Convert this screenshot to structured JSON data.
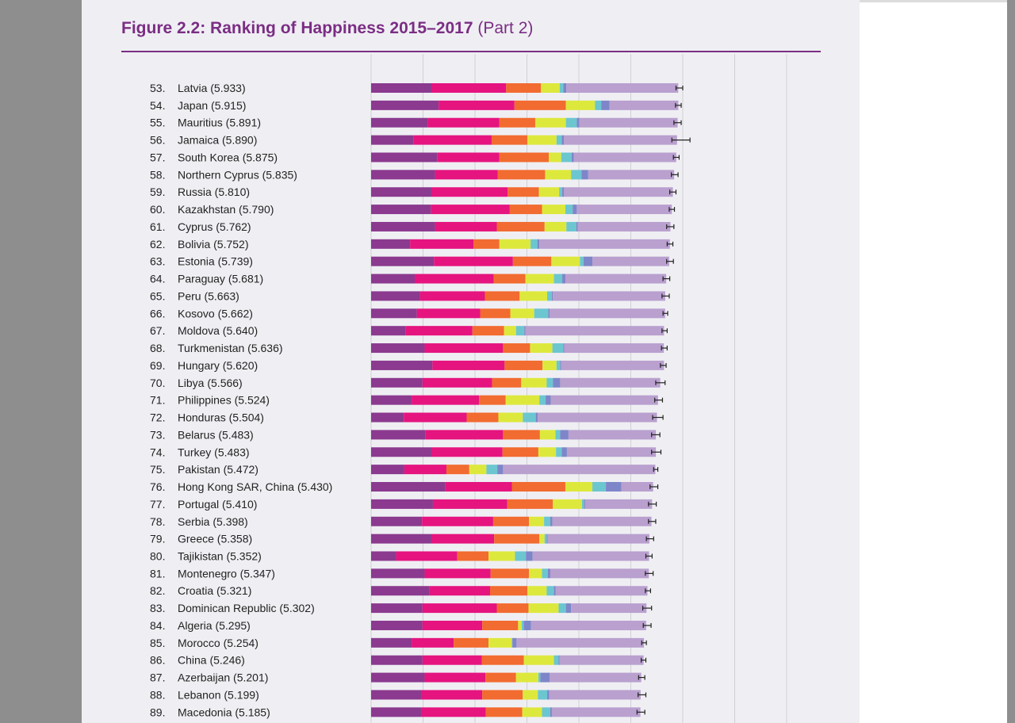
{
  "figure": {
    "title": "Figure 2.2: Ranking of Happiness 2015–2017",
    "part": "(Part 2)"
  },
  "colors": {
    "title": "#7b2d84",
    "segments": [
      "#8b3a8f",
      "#e5147f",
      "#f26b30",
      "#dde83c",
      "#6cc6d0",
      "#7e86c9",
      "#b9a0cf"
    ],
    "gridline": "#cfcfd6",
    "errorbar": "#222222"
  },
  "chart_data": {
    "type": "bar",
    "orientation": "horizontal",
    "stacked": true,
    "grid": true,
    "xlim": [
      0,
      8
    ],
    "categories": [
      "53.  Latvia (5.933)",
      "54.  Japan (5.915)",
      "55.  Mauritius (5.891)",
      "56.  Jamaica (5.890)",
      "57.  South Korea (5.875)",
      "58.  Northern Cyprus (5.835)",
      "59.  Russia (5.810)",
      "60.  Kazakhstan (5.790)",
      "61.  Cyprus (5.762)",
      "62.  Bolivia (5.752)",
      "63.  Estonia (5.739)",
      "64.  Paraguay (5.681)",
      "65.  Peru (5.663)",
      "66.  Kosovo (5.662)",
      "67.  Moldova (5.640)",
      "68.  Turkmenistan (5.636)",
      "69.  Hungary (5.620)",
      "70.  Libya (5.566)",
      "71.  Philippines (5.524)",
      "72.  Honduras (5.504)",
      "73.  Belarus (5.483)",
      "74.  Turkey (5.483)",
      "75.  Pakistan (5.472)",
      "76.  Hong Kong SAR, China (5.430)",
      "77.  Portugal (5.410)",
      "78.  Serbia (5.398)",
      "79.  Greece (5.358)",
      "80.  Tajikistan (5.352)",
      "81.  Montenegro (5.347)",
      "82.  Croatia (5.321)",
      "83.  Dominican Republic (5.302)",
      "84.  Algeria (5.295)",
      "85.  Morocco (5.254)",
      "86.  China (5.246)",
      "87.  Azerbaijan (5.201)",
      "88.  Lebanon (5.199)",
      "89.  Macedonia (5.185)"
    ],
    "totals": [
      5.933,
      5.915,
      5.891,
      5.89,
      5.875,
      5.835,
      5.81,
      5.79,
      5.762,
      5.752,
      5.739,
      5.681,
      5.663,
      5.662,
      5.64,
      5.636,
      5.62,
      5.566,
      5.524,
      5.504,
      5.483,
      5.483,
      5.472,
      5.43,
      5.41,
      5.398,
      5.358,
      5.352,
      5.347,
      5.321,
      5.302,
      5.295,
      5.254,
      5.246,
      5.201,
      5.199,
      5.185
    ],
    "segments": [
      [
        1.16,
        1.44,
        0.67,
        0.36,
        0.07,
        0.06,
        2.153
      ],
      [
        1.3,
        1.46,
        0.99,
        0.56,
        0.12,
        0.16,
        1.325
      ],
      [
        1.09,
        1.38,
        0.69,
        0.59,
        0.21,
        0.05,
        1.891
      ],
      [
        0.82,
        1.5,
        0.69,
        0.56,
        0.1,
        0.04,
        2.18
      ],
      [
        1.27,
        1.2,
        0.95,
        0.24,
        0.2,
        0.04,
        1.975
      ],
      [
        1.23,
        1.21,
        0.91,
        0.5,
        0.2,
        0.13,
        1.655
      ],
      [
        1.16,
        1.47,
        0.6,
        0.39,
        0.06,
        0.03,
        2.1
      ],
      [
        1.15,
        1.52,
        0.62,
        0.45,
        0.14,
        0.08,
        1.83
      ],
      [
        1.23,
        1.19,
        0.92,
        0.42,
        0.19,
        0.03,
        1.782
      ],
      [
        0.75,
        1.22,
        0.5,
        0.6,
        0.13,
        0.04,
        2.512
      ],
      [
        1.21,
        1.52,
        0.74,
        0.55,
        0.07,
        0.17,
        1.479
      ],
      [
        0.84,
        1.52,
        0.61,
        0.55,
        0.16,
        0.06,
        1.941
      ],
      [
        0.94,
        1.25,
        0.67,
        0.53,
        0.09,
        0.02,
        2.163
      ],
      [
        0.88,
        1.22,
        0.58,
        0.46,
        0.27,
        0.03,
        2.222
      ],
      [
        0.66,
        1.29,
        0.61,
        0.23,
        0.16,
        0.02,
        2.67
      ],
      [
        1.03,
        1.51,
        0.52,
        0.43,
        0.21,
        0.02,
        1.916
      ],
      [
        1.18,
        1.39,
        0.73,
        0.27,
        0.07,
        0.02,
        1.98
      ],
      [
        0.99,
        1.34,
        0.56,
        0.49,
        0.12,
        0.14,
        1.926
      ],
      [
        0.78,
        1.3,
        0.51,
        0.65,
        0.12,
        0.1,
        2.064
      ],
      [
        0.63,
        1.21,
        0.61,
        0.47,
        0.25,
        0.04,
        2.294
      ],
      [
        1.05,
        1.49,
        0.71,
        0.3,
        0.09,
        0.16,
        1.683
      ],
      [
        1.16,
        1.37,
        0.69,
        0.34,
        0.11,
        0.1,
        1.713
      ],
      [
        0.64,
        0.81,
        0.44,
        0.33,
        0.21,
        0.11,
        2.932
      ],
      [
        1.43,
        1.28,
        1.03,
        0.52,
        0.26,
        0.3,
        0.61
      ],
      [
        1.19,
        1.43,
        0.88,
        0.56,
        0.04,
        0.02,
        1.29
      ],
      [
        0.98,
        1.37,
        0.69,
        0.29,
        0.12,
        0.04,
        1.908
      ],
      [
        1.16,
        1.21,
        0.87,
        0.1,
        0.04,
        0.02,
        1.958
      ],
      [
        0.48,
        1.18,
        0.6,
        0.51,
        0.21,
        0.13,
        2.242
      ],
      [
        1.03,
        1.27,
        0.74,
        0.25,
        0.11,
        0.05,
        1.897
      ],
      [
        1.12,
        1.17,
        0.72,
        0.37,
        0.14,
        0.03,
        1.771
      ],
      [
        0.99,
        1.43,
        0.61,
        0.58,
        0.14,
        0.1,
        1.452
      ],
      [
        0.99,
        1.15,
        0.69,
        0.07,
        0.04,
        0.14,
        2.215
      ],
      [
        0.78,
        0.81,
        0.67,
        0.45,
        0.01,
        0.08,
        2.454
      ],
      [
        0.99,
        1.14,
        0.81,
        0.58,
        0.09,
        0.02,
        1.616
      ],
      [
        1.03,
        1.17,
        0.59,
        0.43,
        0.04,
        0.18,
        1.761
      ],
      [
        0.97,
        1.17,
        0.78,
        0.29,
        0.18,
        0.04,
        1.759
      ],
      [
        0.97,
        1.24,
        0.7,
        0.38,
        0.16,
        0.03,
        1.705
      ]
    ],
    "whisker_low": [
      5.87,
      5.86,
      5.83,
      5.79,
      5.82,
      5.78,
      5.75,
      5.74,
      5.69,
      5.7,
      5.69,
      5.62,
      5.6,
      5.62,
      5.6,
      5.59,
      5.57,
      5.48,
      5.46,
      5.42,
      5.4,
      5.4,
      5.44,
      5.37,
      5.34,
      5.34,
      5.3,
      5.29,
      5.28,
      5.28,
      5.23,
      5.24,
      5.21,
      5.2,
      5.15,
      5.14,
      5.12
    ],
    "whisker_high": [
      6.0,
      5.97,
      5.97,
      6.14,
      5.93,
      5.91,
      5.87,
      5.84,
      5.83,
      5.81,
      5.82,
      5.75,
      5.74,
      5.71,
      5.7,
      5.7,
      5.68,
      5.66,
      5.61,
      5.62,
      5.56,
      5.58,
      5.52,
      5.52,
      5.49,
      5.48,
      5.44,
      5.41,
      5.43,
      5.38,
      5.4,
      5.39,
      5.3,
      5.29,
      5.27,
      5.29,
      5.27
    ]
  }
}
